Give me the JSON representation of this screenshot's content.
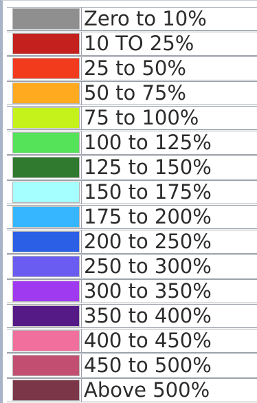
{
  "legend": {
    "items": [
      {
        "label": "Zero to 10%",
        "color": "#8f8f8f"
      },
      {
        "label": "10 TO 25%",
        "color": "#c4201d"
      },
      {
        "label": "25 to 50%",
        "color": "#f23b1d"
      },
      {
        "label": "50 to 75%",
        "color": "#ffaa1f"
      },
      {
        "label": "75 to 100%",
        "color": "#c4f21a"
      },
      {
        "label": "100 to 125%",
        "color": "#55e35a"
      },
      {
        "label": "125 to 150%",
        "color": "#2f7a2e"
      },
      {
        "label": "150 to 175%",
        "color": "#a6ffff"
      },
      {
        "label": "175 to 200%",
        "color": "#35b6ff"
      },
      {
        "label": "200 to 250%",
        "color": "#2a5fe6"
      },
      {
        "label": "250 to 300%",
        "color": "#6a5cf0"
      },
      {
        "label": "300 to 350%",
        "color": "#a03af0"
      },
      {
        "label": "350 to 400%",
        "color": "#561a87"
      },
      {
        "label": "400 to 450%",
        "color": "#f06f9c"
      },
      {
        "label": "450 to 500%",
        "color": "#c24f72"
      },
      {
        "label": "Above 500%",
        "color": "#7b3748"
      }
    ]
  }
}
